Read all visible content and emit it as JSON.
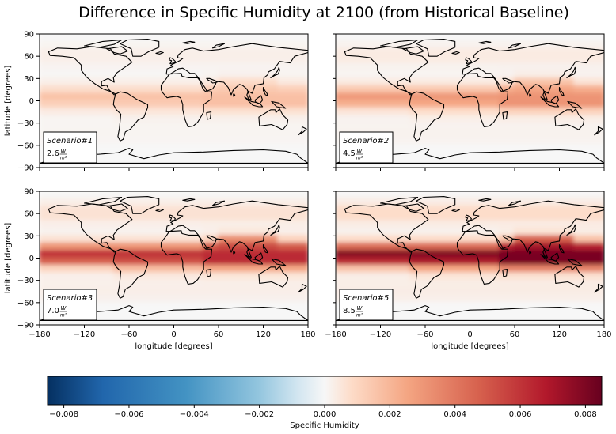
{
  "chart_data": {
    "type": "heatmap",
    "title": "Difference in Specific Humidity at 2100 (from Historical Baseline)",
    "xlabel": "longitude [degrees]",
    "ylabel": "latitude [degrees]",
    "xlim": [
      -180,
      180
    ],
    "ylim": [
      -90,
      90
    ],
    "x_ticks": [
      "−180",
      "−120",
      "−60",
      "0",
      "60",
      "120",
      "180"
    ],
    "y_ticks": [
      "90",
      "60",
      "30",
      "0",
      "−30",
      "−60",
      "−90"
    ],
    "colormap": "RdBu_r",
    "colorbar": {
      "label": "Specific Humidity",
      "range": [
        -0.0085,
        0.0085
      ],
      "ticks": [
        "−0.008",
        "−0.006",
        "−0.004",
        "−0.002",
        "0.000",
        "0.002",
        "0.004",
        "0.006",
        "0.008"
      ]
    },
    "panels": [
      {
        "scenario": "Scenario#1",
        "forcing": "2.6",
        "intensity": 0.3
      },
      {
        "scenario": "Scenario#2",
        "forcing": "4.5",
        "intensity": 0.45
      },
      {
        "scenario": "Scenario#3",
        "forcing": "7.0",
        "intensity": 0.75
      },
      {
        "scenario": "Scenario#5",
        "forcing": "8.5",
        "intensity": 0.95
      }
    ],
    "units": {
      "num": "W",
      "den": "m²"
    }
  }
}
